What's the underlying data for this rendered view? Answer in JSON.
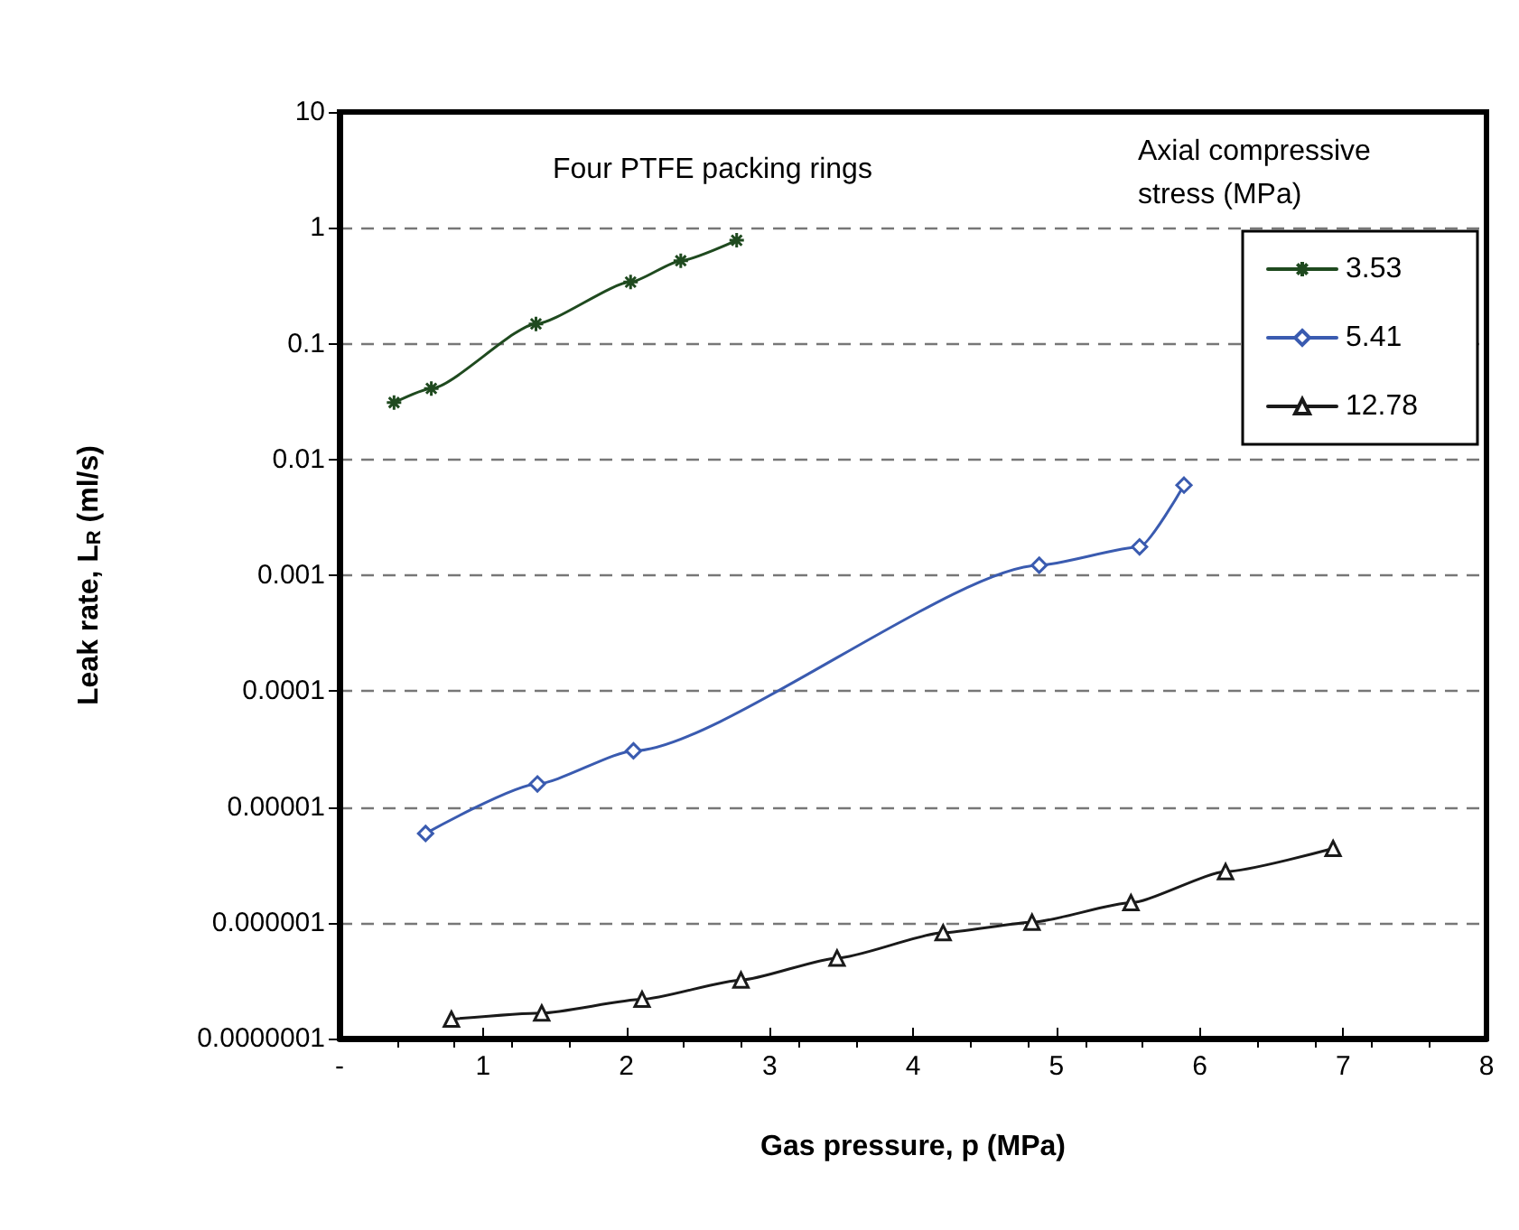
{
  "chart_data": {
    "type": "line",
    "xlabel": "Gas pressure, p (MPa)",
    "ylabel": "Leak rate, L$_{R}$ (ml/s)",
    "legend_title": "Axial compressive stress (MPa)",
    "annotations": [
      "Four PTFE packing rings"
    ],
    "log": "y",
    "grid": "y",
    "legend": "top right",
    "xlim": [
      0,
      8
    ],
    "xticks": [
      {
        "value": 0,
        "label": "-"
      },
      1,
      2,
      3,
      4,
      5,
      6,
      7,
      8
    ],
    "ylim": [
      1e-07,
      10
    ],
    "yticks": [
      {
        "value": 1e-07,
        "label": "0.0000001"
      },
      {
        "value": 1e-06,
        "label": "0.000001"
      },
      {
        "value": 1e-05,
        "label": "0.00001"
      },
      {
        "value": 0.0001,
        "label": "0.0001"
      },
      {
        "value": 0.001,
        "label": "0.001"
      },
      {
        "value": 0.01,
        "label": "0.01"
      },
      {
        "value": 0.1,
        "label": "0.1"
      },
      {
        "value": 1,
        "label": "1"
      },
      {
        "value": 10,
        "label": "10"
      }
    ],
    "series": [
      {
        "name": "3.53",
        "color": "#1f4a1f",
        "marker": "cross",
        "x": [
          0.38,
          0.64,
          1.37,
          2.03,
          2.38,
          2.77
        ],
        "values": [
          0.031,
          0.041,
          0.148,
          0.34,
          0.52,
          0.78
        ]
      },
      {
        "name": "5.41",
        "color": "#3a5bb0",
        "marker": "diamond",
        "x": [
          0.6,
          1.38,
          2.05,
          4.88,
          5.58,
          5.89
        ],
        "values": [
          5.9e-06,
          1.58e-05,
          3.05e-05,
          0.00122,
          0.00176,
          0.006
        ]
      },
      {
        "name": "12.78",
        "color": "#1a1a1a",
        "marker": "triangle",
        "x": [
          0.78,
          1.41,
          2.11,
          2.8,
          3.47,
          4.21,
          4.83,
          5.52,
          6.18,
          6.93
        ],
        "values": [
          1.47e-07,
          1.66e-07,
          2.18e-07,
          3.2e-07,
          4.95e-07,
          8.2e-07,
          1.01e-06,
          1.49e-06,
          2.76e-06,
          4.38e-06
        ]
      }
    ]
  }
}
